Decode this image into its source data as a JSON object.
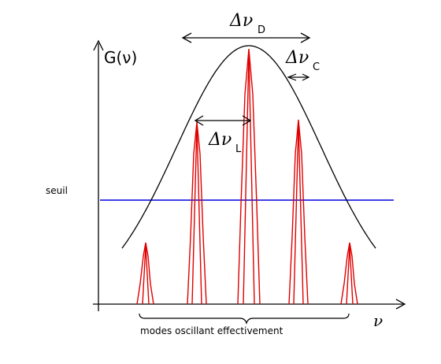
{
  "figure": {
    "gain_label": "G(ν)",
    "doppler_width_label": "Δν",
    "doppler_width_sub": "D",
    "cavity_width_label": "Δν",
    "cavity_width_sub": "C",
    "mode_spacing_label": "Δν",
    "mode_spacing_sub": "L",
    "threshold_label": "seuil",
    "x_axis_label": "ν",
    "modes_caption": "modes oscillant effectivement"
  },
  "colors": {
    "axes": "#000000",
    "gain_curve": "#000000",
    "modes": "#e00000",
    "threshold": "#0000e0",
    "background": "#ffffff"
  }
}
